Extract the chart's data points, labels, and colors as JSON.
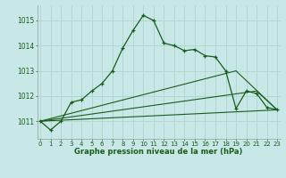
{
  "title": "Graphe pression niveau de la mer (hPa)",
  "background_color": "#c8e8e8",
  "grid_color": "#b0d8d0",
  "line_color": "#1a5c1a",
  "x_ticks": [
    0,
    1,
    2,
    3,
    4,
    5,
    6,
    7,
    8,
    9,
    10,
    11,
    12,
    13,
    14,
    15,
    16,
    17,
    18,
    19,
    20,
    21,
    22,
    23
  ],
  "y_ticks": [
    1011,
    1012,
    1013,
    1014,
    1015
  ],
  "ylim": [
    1010.3,
    1015.6
  ],
  "xlim": [
    -0.3,
    23.3
  ],
  "main_series": {
    "x": [
      0,
      1,
      2,
      3,
      4,
      5,
      6,
      7,
      8,
      9,
      10,
      11,
      12,
      13,
      14,
      15,
      16,
      17,
      18,
      19,
      20,
      21,
      22,
      23
    ],
    "y": [
      1011.0,
      1010.65,
      1011.0,
      1011.75,
      1011.85,
      1012.2,
      1012.5,
      1013.0,
      1013.9,
      1014.6,
      1015.2,
      1015.0,
      1014.1,
      1014.0,
      1013.8,
      1013.85,
      1013.6,
      1013.55,
      1013.0,
      1011.5,
      1012.2,
      1012.1,
      1011.55,
      1011.45
    ]
  },
  "flat_lines": [
    {
      "x": [
        0,
        23
      ],
      "y": [
        1011.0,
        1011.45
      ]
    },
    {
      "x": [
        0,
        21,
        23
      ],
      "y": [
        1011.0,
        1012.2,
        1011.45
      ]
    },
    {
      "x": [
        0,
        19,
        23
      ],
      "y": [
        1011.0,
        1013.0,
        1011.45
      ]
    }
  ]
}
